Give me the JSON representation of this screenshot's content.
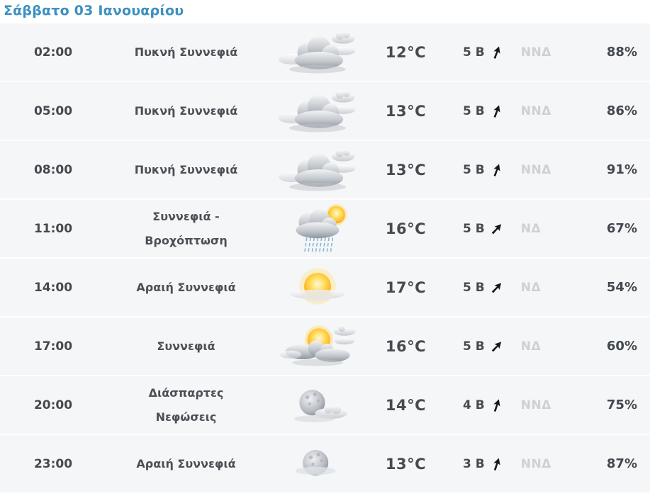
{
  "header": {
    "date_label": "Σάββατο 03 Ιανουαρίου"
  },
  "colors": {
    "accent_blue": "#3c90c0",
    "row_background": "#f5f6f8",
    "text_dark": "#45494f",
    "wind_dir_muted": "#cdd1d6",
    "arrow_black": "#15181b",
    "rain_blue": "#6fa8cc",
    "sun_orange": "#ff9e1b"
  },
  "table": {
    "rows": [
      {
        "time": "02:00",
        "condition": "Πυκνή Συννεφιά",
        "icon": "heavy-clouds",
        "temp": "12°C",
        "wind_speed": "5 Β",
        "wind_dir": "ΝΝΔ",
        "wind_deg_from_north": 20,
        "humidity": "88%"
      },
      {
        "time": "05:00",
        "condition": "Πυκνή Συννεφιά",
        "icon": "heavy-clouds",
        "temp": "13°C",
        "wind_speed": "5 Β",
        "wind_dir": "ΝΝΔ",
        "wind_deg_from_north": 20,
        "humidity": "86%"
      },
      {
        "time": "08:00",
        "condition": "Πυκνή Συννεφιά",
        "icon": "heavy-clouds",
        "temp": "13°C",
        "wind_speed": "5 Β",
        "wind_dir": "ΝΝΔ",
        "wind_deg_from_north": 20,
        "humidity": "91%"
      },
      {
        "time": "11:00",
        "condition": "Συννεφιά -\nΒροχόπτωση",
        "icon": "cloud-rain-sun",
        "temp": "16°C",
        "wind_speed": "5 Β",
        "wind_dir": "ΝΔ",
        "wind_deg_from_north": 43,
        "humidity": "67%"
      },
      {
        "time": "14:00",
        "condition": "Αραιή Συννεφιά",
        "icon": "sun-haze",
        "temp": "17°C",
        "wind_speed": "5 Β",
        "wind_dir": "ΝΔ",
        "wind_deg_from_north": 43,
        "humidity": "54%"
      },
      {
        "time": "17:00",
        "condition": "Συννεφιά",
        "icon": "sun-clouds",
        "temp": "16°C",
        "wind_speed": "5 Β",
        "wind_dir": "ΝΔ",
        "wind_deg_from_north": 43,
        "humidity": "60%"
      },
      {
        "time": "20:00",
        "condition": "Διάσπαρτες\nΝεφώσεις",
        "icon": "moon-cloud",
        "temp": "14°C",
        "wind_speed": "4 Β",
        "wind_dir": "ΝΝΔ",
        "wind_deg_from_north": 18,
        "humidity": "75%"
      },
      {
        "time": "23:00",
        "condition": "Αραιή Συννεφιά",
        "icon": "moon",
        "temp": "13°C",
        "wind_speed": "3 Β",
        "wind_dir": "ΝΝΔ",
        "wind_deg_from_north": 18,
        "humidity": "87%"
      }
    ]
  }
}
